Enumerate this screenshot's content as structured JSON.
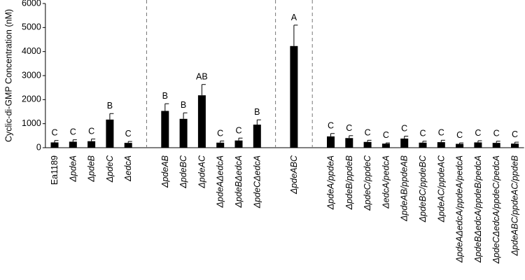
{
  "chart_data": {
    "type": "bar",
    "y_label": "Cyclic-di-GMP Concentration (nM)",
    "categories": [
      "Ea1189",
      "ΔpdeA",
      "ΔpdeB",
      "ΔpdeC",
      "ΔedcA",
      null,
      "ΔpdeAB",
      "ΔpdeBC",
      "ΔpdeAC",
      "ΔpdeAΔedcA",
      "ΔpdeBΔedcA",
      "ΔpdeCΔedcA",
      null,
      "ΔpdeABC",
      null,
      "ΔpdeA/ppdeA",
      "ΔpdeB/ppdeB",
      "ΔpdeC/ppdeC",
      "ΔedcA/pedcA",
      "ΔpdeAB/ppdeAB",
      "ΔpdeBC/ppdeBC",
      "ΔpdeAC/ppdeAC",
      "ΔpdeAΔedcA/ppdeA/pedcA",
      "ΔpdeBΔedcA/ppdeB/pedcA",
      "ΔpdeCΔedcA/ppdeC/pedcA",
      "ΔpdeABC/ppdeAC/ppdeB"
    ],
    "values": [
      220,
      250,
      270,
      1170,
      200,
      null,
      1530,
      1200,
      2180,
      210,
      300,
      960,
      null,
      4230,
      null,
      470,
      400,
      240,
      170,
      380,
      210,
      230,
      160,
      220,
      200,
      170
    ],
    "errors": [
      80,
      80,
      90,
      250,
      60,
      null,
      300,
      250,
      450,
      70,
      100,
      200,
      null,
      870,
      null,
      120,
      100,
      70,
      30,
      100,
      60,
      80,
      40,
      70,
      70,
      60
    ],
    "annotations": [
      "C",
      "C",
      "C",
      "B",
      "C",
      null,
      "B",
      "B",
      "AB",
      "C",
      "C",
      "B",
      null,
      "A",
      null,
      "C",
      "C",
      "C",
      "C",
      "C",
      "C",
      "C",
      "C",
      "C",
      "C",
      "C"
    ],
    "color": "#000000",
    "ylim": [
      0,
      6000
    ],
    "yticks": [
      0,
      1000,
      2000,
      3000,
      4000,
      5000,
      6000
    ]
  }
}
